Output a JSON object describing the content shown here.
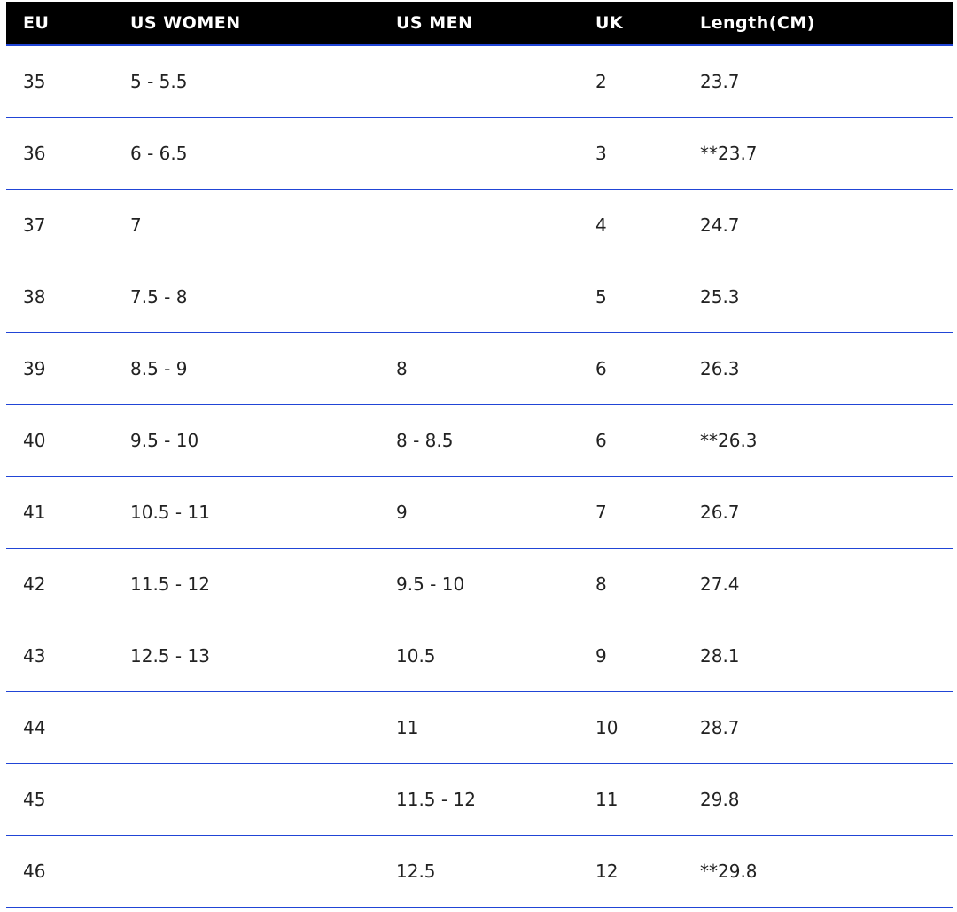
{
  "headers": [
    "EU",
    "US WOMEN",
    "US MEN",
    "UK",
    "Length(CM)"
  ],
  "rows": [
    [
      "35",
      "5 - 5.5",
      "",
      "2",
      "23.7"
    ],
    [
      "36",
      "6 - 6.5",
      "",
      "3",
      "**23.7"
    ],
    [
      "37",
      "7",
      "",
      "4",
      "24.7"
    ],
    [
      "38",
      "7.5 - 8",
      "",
      "5",
      "25.3"
    ],
    [
      "39",
      "8.5 - 9",
      "8",
      "6",
      "26.3"
    ],
    [
      "40",
      "9.5 - 10",
      "8 - 8.5",
      "6",
      "**26.3"
    ],
    [
      "41",
      "10.5 - 11",
      "9",
      "7",
      "26.7"
    ],
    [
      "42",
      "11.5 - 12",
      "9.5 - 10",
      "8",
      "27.4"
    ],
    [
      "43",
      "12.5 - 13",
      "10.5",
      "9",
      "28.1"
    ],
    [
      "44",
      "",
      "11",
      "10",
      "28.7"
    ],
    [
      "45",
      "",
      "11.5 - 12",
      "11",
      "29.8"
    ],
    [
      "46",
      "",
      "12.5",
      "12",
      "**29.8"
    ]
  ],
  "colors": {
    "header_bg": "#000000",
    "header_text": "#ffffff",
    "divider": "#2145d6"
  }
}
